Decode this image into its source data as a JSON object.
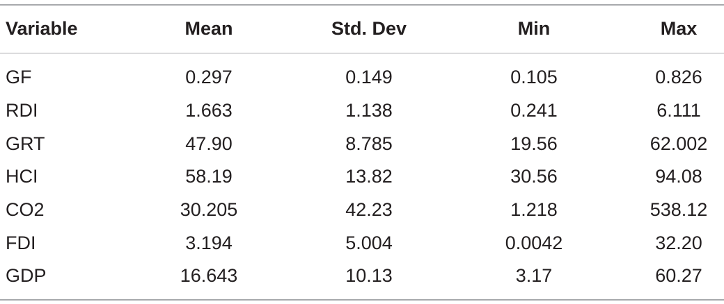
{
  "table": {
    "headers": [
      "Variable",
      "Mean",
      "Std. Dev",
      "Min",
      "Max"
    ],
    "rows": [
      [
        "GF",
        "0.297",
        "0.149",
        "0.105",
        "0.826"
      ],
      [
        "RDI",
        "1.663",
        "1.138",
        "0.241",
        "6.111"
      ],
      [
        "GRT",
        "47.90",
        "8.785",
        "19.56",
        "62.002"
      ],
      [
        "HCI",
        "58.19",
        "13.82",
        "30.56",
        "94.08"
      ],
      [
        "CO2",
        "30.205",
        "42.23",
        "1.218",
        "538.12"
      ],
      [
        "FDI",
        "3.194",
        "5.004",
        "0.0042",
        "32.20"
      ],
      [
        "GDP",
        "16.643",
        "10.13",
        "3.17",
        "60.27"
      ]
    ]
  }
}
